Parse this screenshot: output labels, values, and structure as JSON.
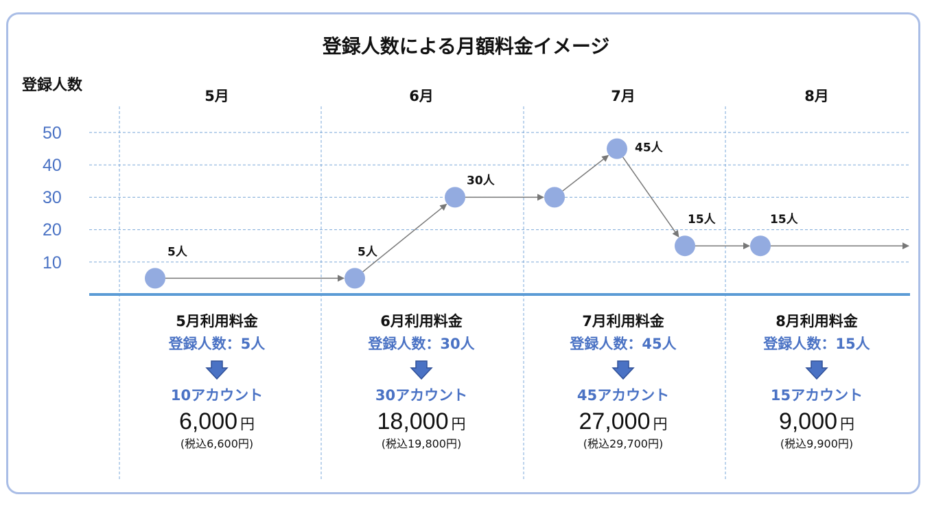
{
  "title": "登録人数による月額料金イメージ",
  "y_axis_title": "登録人数",
  "months": [
    "5月",
    "6月",
    "7月",
    "8月"
  ],
  "y_ticks": [
    "50",
    "40",
    "30",
    "20",
    "10"
  ],
  "colors": {
    "accent": "#4a72c4",
    "point": "#93abe0",
    "frame": "#a9bde6",
    "baseline": "#5b9bd5",
    "grid": "#7aa7d8"
  },
  "chart_data": {
    "type": "line",
    "title": "登録人数による月額料金イメージ",
    "ylabel": "登録人数",
    "categories": [
      "5月",
      "6月",
      "7月",
      "8月"
    ],
    "ylim": [
      0,
      50
    ],
    "y_ticks": [
      10,
      20,
      30,
      40,
      50
    ],
    "grid": true,
    "points": [
      {
        "x": "5月 start",
        "y": 5,
        "label": "5人"
      },
      {
        "x": "6月 start",
        "y": 5,
        "label": "5人"
      },
      {
        "x": "6月 end",
        "y": 30,
        "label": "30人"
      },
      {
        "x": "7月 start",
        "y": 30,
        "label": ""
      },
      {
        "x": "7月 mid",
        "y": 45,
        "label": "45人"
      },
      {
        "x": "7月 end",
        "y": 15,
        "label": "15人"
      },
      {
        "x": "8月 start",
        "y": 15,
        "label": "15人"
      }
    ]
  },
  "fees": [
    {
      "heading": "5月利用料金",
      "users": "登録人数：5人",
      "accounts": "10アカウント",
      "price": "6,000",
      "yen": "円",
      "tax": "(税込6,600円)"
    },
    {
      "heading": "6月利用料金",
      "users": "登録人数：30人",
      "accounts": "30アカウント",
      "price": "18,000",
      "yen": "円",
      "tax": "(税込19,800円)"
    },
    {
      "heading": "7月利用料金",
      "users": "登録人数：45人",
      "accounts": "45アカウント",
      "price": "27,000",
      "yen": "円",
      "tax": "(税込29,700円)"
    },
    {
      "heading": "8月利用料金",
      "users": "登録人数：15人",
      "accounts": "15アカウント",
      "price": "9,000",
      "yen": "円",
      "tax": "(税込9,900円)"
    }
  ]
}
